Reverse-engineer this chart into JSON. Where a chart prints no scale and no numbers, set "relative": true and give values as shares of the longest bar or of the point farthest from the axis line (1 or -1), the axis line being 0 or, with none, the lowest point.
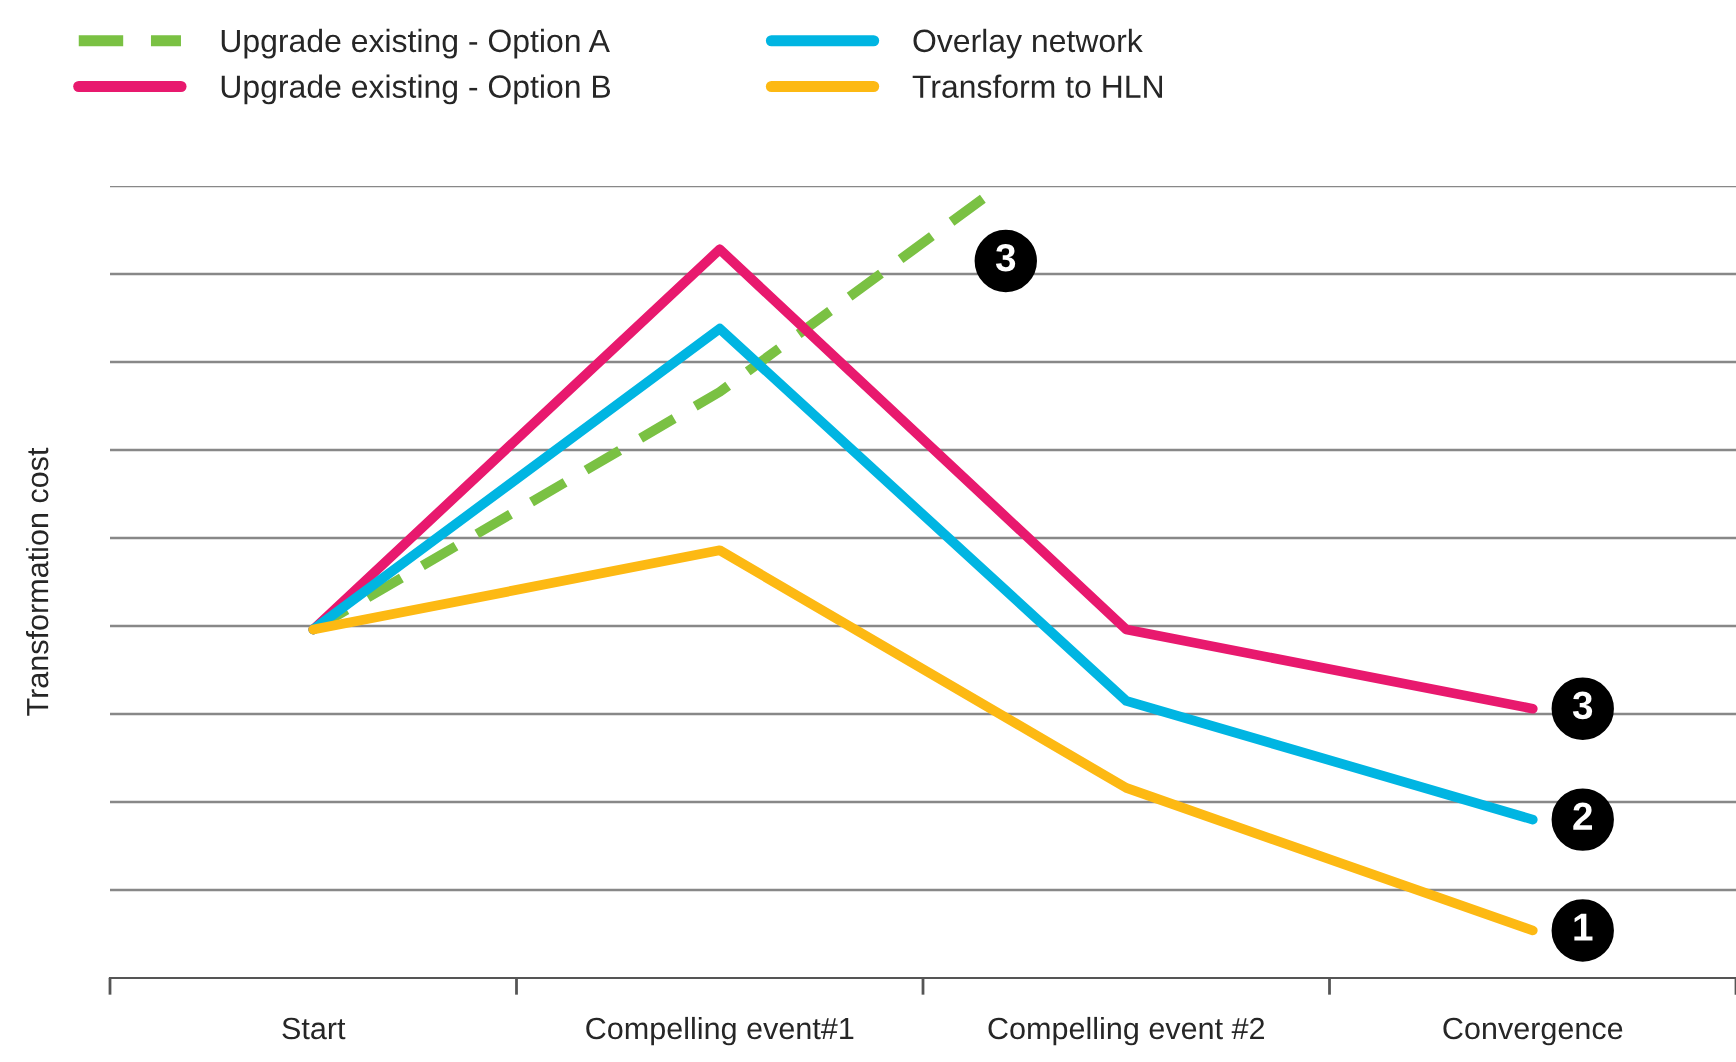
{
  "chart_data": {
    "type": "line",
    "relative": true,
    "ylabel": "Transformation cost",
    "x": [
      0,
      1,
      2,
      3
    ],
    "xlim": [
      -0.5,
      3.5
    ],
    "xticks": [
      {
        "value": -0.5,
        "label": null
      },
      {
        "value": 0,
        "label": "Start"
      },
      {
        "value": 0.5,
        "label": null
      },
      {
        "value": 1,
        "label": "Compelling event#1"
      },
      {
        "value": 1.5,
        "label": null
      },
      {
        "value": 2,
        "label": "Compelling event #2"
      },
      {
        "value": 2.5,
        "label": null
      },
      {
        "value": 3,
        "label": "Convergence"
      },
      {
        "value": 3.5,
        "label": null
      }
    ],
    "series": [
      {
        "name": "Upgrade existing - Option A",
        "color": "#7ac143",
        "line_style": "dashed",
        "x": [
          0,
          1,
          1.69
        ],
        "values": [
          0.44,
          0.74,
          1.0
        ]
      },
      {
        "name": "Upgrade existing - Option B",
        "color": "#e8196e",
        "values": [
          0.44,
          0.92,
          0.44,
          0.34
        ]
      },
      {
        "name": "Overlay network",
        "color": "#00b5e2",
        "values": [
          0.44,
          0.82,
          0.35,
          0.2
        ]
      },
      {
        "name": "Transform to HLN",
        "color": "#fdb913",
        "values": [
          0.44,
          0.54,
          0.24,
          0.06
        ]
      }
    ],
    "annotations": [
      "3",
      "3",
      "2",
      "1"
    ],
    "grid": "y",
    "legend": "top left",
    "marker": "none"
  }
}
